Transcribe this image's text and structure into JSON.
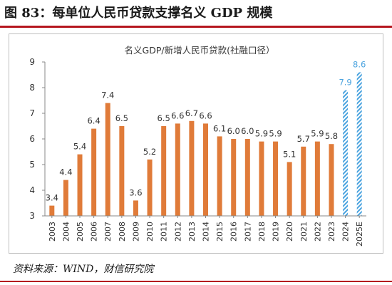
{
  "figure": {
    "title": "图 83：每单位人民币贷款支撑名义 GDP 规模",
    "source": "资料来源：WIND，财信研究院"
  },
  "colors": {
    "bar": "#e07b39",
    "forecast": "#4aa3df",
    "rule": "#b5171e"
  },
  "chart_data": {
    "type": "bar",
    "title": "名义GDP/新增人民币贷款(社融口径）",
    "categories": [
      "2003",
      "2004",
      "2005",
      "2006",
      "2007",
      "2008",
      "2009",
      "2010",
      "2011",
      "2012",
      "2013",
      "2014",
      "2015",
      "2016",
      "2017",
      "2018",
      "2019",
      "2020",
      "2021",
      "2022",
      "2023",
      "2024",
      "2025E"
    ],
    "values": [
      3.4,
      4.4,
      5.4,
      6.4,
      7.4,
      6.5,
      3.6,
      5.2,
      6.5,
      6.6,
      6.7,
      6.6,
      6.1,
      6.0,
      6.0,
      5.9,
      5.9,
      5.1,
      5.7,
      5.9,
      5.8,
      7.9,
      8.6
    ],
    "labels": [
      "3.4",
      "4.4",
      "5.4",
      "6.4",
      "7.4",
      "6.5",
      "3.6",
      "5.2",
      "6.5",
      "6.6",
      "6.7",
      "6.6",
      "6.1",
      "6.0",
      "6.0",
      "5.9",
      "5.9",
      "5.1",
      "5.7",
      "5.9",
      "5.8",
      "7.9",
      "8.6"
    ],
    "forecast": [
      false,
      false,
      false,
      false,
      false,
      false,
      false,
      false,
      false,
      false,
      false,
      false,
      false,
      false,
      false,
      false,
      false,
      false,
      false,
      false,
      false,
      true,
      true
    ],
    "ylim": [
      3,
      9
    ],
    "yticks": [
      "3",
      "4",
      "5",
      "6",
      "7",
      "8",
      "9"
    ],
    "grid": false,
    "xlabel": "",
    "ylabel": ""
  }
}
